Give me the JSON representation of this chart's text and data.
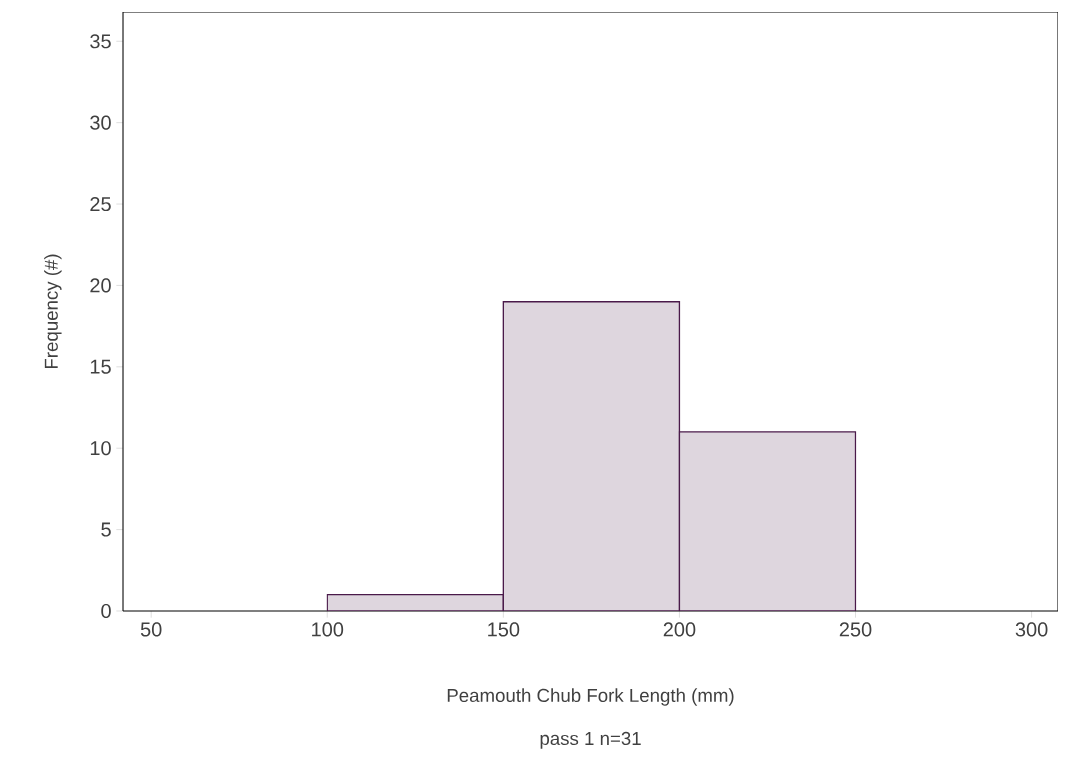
{
  "chart_data": {
    "type": "histogram",
    "bins": [
      100,
      150,
      200,
      250
    ],
    "values": [
      1,
      19,
      11
    ],
    "color": "#4a1a4a",
    "xlabel": "Peamouth Chub Fork Length (mm)",
    "ylabel": "Frequency (#)",
    "annotations": [
      "pass 1  n=31"
    ],
    "xlim": [
      42,
      307.5
    ],
    "ylim": [
      0,
      36.8
    ],
    "xticks": [
      50,
      100,
      150,
      200,
      250,
      300
    ],
    "yticks": [
      0,
      5,
      10,
      15,
      20,
      25,
      30,
      35
    ],
    "grid": false
  }
}
